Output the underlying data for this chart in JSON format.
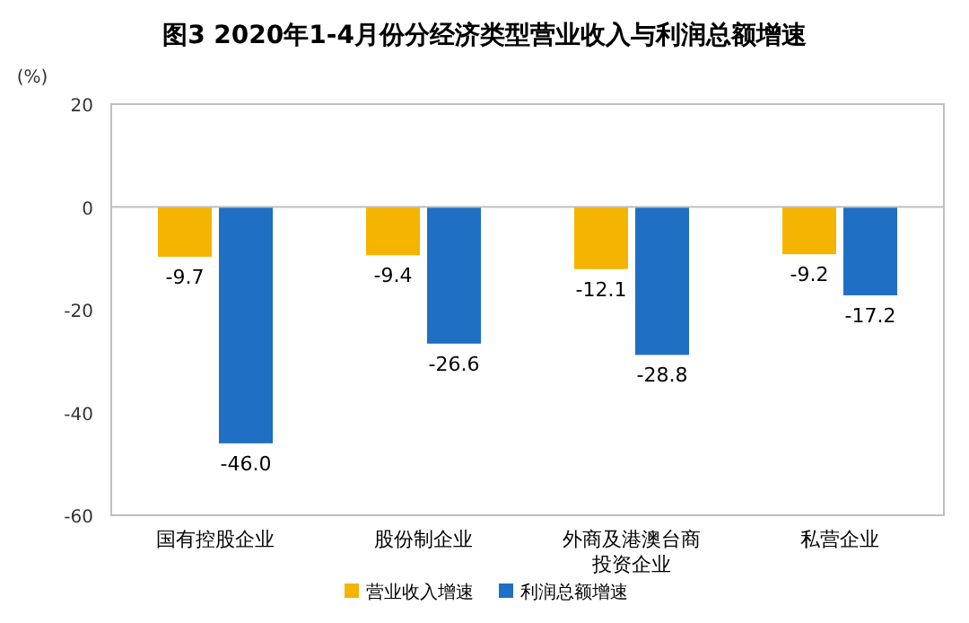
{
  "chart_data": {
    "type": "bar",
    "title": "图3 2020年1-4月份分经济类型营业收入与利润总额增速",
    "ylabel": "(%)",
    "categories": [
      "国有控股企业",
      "股份制企业",
      "外商及港澳台商投资企业",
      "私营企业"
    ],
    "series": [
      {
        "name": "营业收入增速",
        "color": "#f5b400",
        "values": [
          -9.7,
          -9.4,
          -12.1,
          -9.2
        ],
        "value_labels": [
          "-9.7",
          "-9.4",
          "-12.1",
          "-9.2"
        ]
      },
      {
        "name": "利润总额增速",
        "color": "#1f6fc4",
        "values": [
          -46.0,
          -26.6,
          -28.8,
          -17.2
        ],
        "value_labels": [
          "-46.0",
          "-26.6",
          "-28.8",
          "-17.2"
        ]
      }
    ],
    "ylim": [
      -60,
      20
    ],
    "yticks": [
      -60,
      -40,
      -20,
      0,
      20
    ],
    "legend": "bottom"
  }
}
